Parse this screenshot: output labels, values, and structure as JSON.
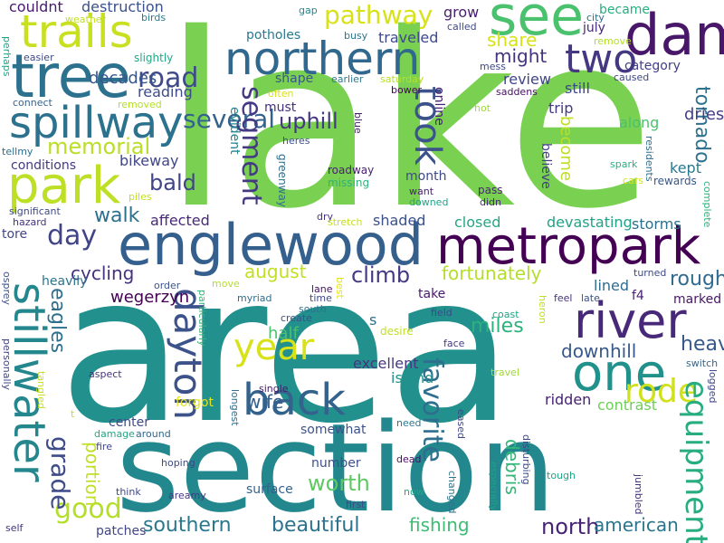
{
  "words": [
    {
      "text": "lake",
      "color": "#7ad151"
    },
    {
      "text": "area",
      "color": "#22908d"
    },
    {
      "text": "section",
      "color": "#23888e"
    },
    {
      "text": "metropark",
      "color": "#440154"
    },
    {
      "text": "englewood",
      "color": "#355f8d"
    },
    {
      "text": "tree",
      "color": "#2c718e"
    },
    {
      "text": "northern",
      "color": "#31688e"
    },
    {
      "text": "dam",
      "color": "#481769"
    },
    {
      "text": "see",
      "color": "#4ac16d"
    },
    {
      "text": "spillway",
      "color": "#2c728e"
    },
    {
      "text": "park",
      "color": "#bddf26"
    },
    {
      "text": "trails",
      "color": "#c8e020"
    },
    {
      "text": "river",
      "color": "#482979"
    },
    {
      "text": "one",
      "color": "#21918c"
    },
    {
      "text": "stillwater",
      "color": "#24878e"
    },
    {
      "text": "dayton",
      "color": "#3b528b"
    },
    {
      "text": "back",
      "color": "#33638d"
    },
    {
      "text": "year",
      "color": "#d8e219"
    },
    {
      "text": "rode",
      "color": "#d0e11c"
    },
    {
      "text": "equipment",
      "color": "#27ad81"
    },
    {
      "text": "two",
      "color": "#453781"
    },
    {
      "text": "took",
      "color": "#3b528b"
    },
    {
      "text": "pathway",
      "color": "#d8e219"
    },
    {
      "text": "several",
      "color": "#33638d"
    },
    {
      "text": "road",
      "color": "#3e4a89"
    },
    {
      "text": "segment",
      "color": "#443a83"
    },
    {
      "text": "memorial",
      "color": "#bade28"
    },
    {
      "text": "day",
      "color": "#414487"
    },
    {
      "text": "good",
      "color": "#b5de2b"
    },
    {
      "text": "grade",
      "color": "#3e4c8a"
    },
    {
      "text": "favorite",
      "color": "#2e6e8e"
    },
    {
      "text": "southern",
      "color": "#2a788e"
    },
    {
      "text": "beautiful",
      "color": "#2c728e"
    },
    {
      "text": "north",
      "color": "#482475"
    },
    {
      "text": "american",
      "color": "#2a768e"
    },
    {
      "text": "fishing",
      "color": "#3dbc74"
    },
    {
      "text": "worth",
      "color": "#5ec962"
    },
    {
      "text": "miles",
      "color": "#2db27d"
    },
    {
      "text": "rough",
      "color": "#306a8e"
    },
    {
      "text": "heavy",
      "color": "#38588c"
    },
    {
      "text": "downhill",
      "color": "#38588c"
    },
    {
      "text": "tornado",
      "color": "#2c728e"
    },
    {
      "text": "climb",
      "color": "#443983"
    },
    {
      "text": "august",
      "color": "#c2df23"
    },
    {
      "text": "fortunately",
      "color": "#b5de2b"
    },
    {
      "text": "cycling",
      "color": "#46327e"
    },
    {
      "text": "walk",
      "color": "#2d708e"
    },
    {
      "text": "bald",
      "color": "#414487"
    },
    {
      "text": "uphill",
      "color": "#453882"
    },
    {
      "text": "eagles",
      "color": "#2e6f8e"
    },
    {
      "text": "portion",
      "color": "#c0df25"
    },
    {
      "text": "wife",
      "color": "#355f8d"
    },
    {
      "text": "debris",
      "color": "#35b779"
    },
    {
      "text": "share",
      "color": "#d8e219"
    },
    {
      "text": "might",
      "color": "#46337e"
    },
    {
      "text": "dries",
      "color": "#433e85"
    },
    {
      "text": "become",
      "color": "#bddf26"
    },
    {
      "text": "kept",
      "color": "#2a788e"
    },
    {
      "text": "along",
      "color": "#4ac16d"
    },
    {
      "text": "lined",
      "color": "#2f6c8e"
    },
    {
      "text": "wegerzyn",
      "color": "#440154"
    },
    {
      "text": "half",
      "color": "#4ac16d"
    },
    {
      "text": "island",
      "color": "#21918c"
    },
    {
      "text": "excellent",
      "color": "#453781"
    },
    {
      "text": "ridden",
      "color": "#482173"
    },
    {
      "text": "contrast",
      "color": "#6ece58"
    },
    {
      "text": "storms",
      "color": "#2e6e8e"
    },
    {
      "text": "devastating",
      "color": "#20a386"
    },
    {
      "text": "closed",
      "color": "#22a785"
    },
    {
      "text": "shaded",
      "color": "#3b518b"
    },
    {
      "text": "affected",
      "color": "#482878"
    },
    {
      "text": "bikeway",
      "color": "#404688"
    },
    {
      "text": "conditions",
      "color": "#453882"
    },
    {
      "text": "decades",
      "color": "#38588c"
    },
    {
      "text": "reading",
      "color": "#3e4a89"
    },
    {
      "text": "couldnt",
      "color": "#481a6c"
    },
    {
      "text": "destruction",
      "color": "#3b528b"
    },
    {
      "text": "traveled",
      "color": "#3e4a89"
    },
    {
      "text": "grow",
      "color": "#481f70"
    },
    {
      "text": "trip",
      "color": "#443983"
    },
    {
      "text": "review",
      "color": "#404588"
    },
    {
      "text": "still",
      "color": "#3f4889"
    },
    {
      "text": "category",
      "color": "#424086"
    },
    {
      "text": "july",
      "color": "#482878"
    },
    {
      "text": "became",
      "color": "#26ad81"
    },
    {
      "text": "potholes",
      "color": "#2a788e"
    },
    {
      "text": "shape",
      "color": "#3a548c"
    },
    {
      "text": "must",
      "color": "#46307e"
    },
    {
      "text": "evident",
      "color": "#25848e"
    },
    {
      "text": "believe",
      "color": "#424086"
    },
    {
      "text": "center",
      "color": "#3e4989"
    },
    {
      "text": "forgot",
      "color": "#e5e419"
    },
    {
      "text": "somewhat",
      "color": "#3b528b"
    },
    {
      "text": "number",
      "color": "#3b528b"
    },
    {
      "text": "surface",
      "color": "#33638d"
    },
    {
      "text": "patches",
      "color": "#404688"
    },
    {
      "text": "heavily",
      "color": "#2c738e"
    },
    {
      "text": "tore",
      "color": "#3f4889"
    },
    {
      "text": "take",
      "color": "#48186a"
    },
    {
      "text": "month",
      "color": "#3e4989"
    },
    {
      "text": "online",
      "color": "#482173"
    },
    {
      "text": "saddens",
      "color": "#471063"
    },
    {
      "text": "caused",
      "color": "#3f4788"
    },
    {
      "text": "marked",
      "color": "#481467"
    },
    {
      "text": "f4",
      "color": "#482071"
    },
    {
      "text": "s",
      "color": "#2d708e"
    },
    {
      "text": "roadway",
      "color": "#482071"
    },
    {
      "text": "missing",
      "color": "#2db27d"
    },
    {
      "text": "spark",
      "color": "#2ab07f"
    },
    {
      "text": "cars",
      "color": "#d5e21a"
    },
    {
      "text": "rewards",
      "color": "#38588c"
    },
    {
      "text": "residents",
      "color": "#2e6e8e"
    },
    {
      "text": "complete",
      "color": "#2db27d"
    },
    {
      "text": "pass",
      "color": "#482576"
    },
    {
      "text": "didn",
      "color": "#482878"
    },
    {
      "text": "want",
      "color": "#481d6f"
    },
    {
      "text": "downed",
      "color": "#20a486"
    },
    {
      "text": "dry",
      "color": "#46307e"
    },
    {
      "text": "greenway",
      "color": "#2e6e8e"
    },
    {
      "text": "heres",
      "color": "#3b518b"
    },
    {
      "text": "stretch",
      "color": "#c8e020"
    },
    {
      "text": "blue",
      "color": "#481d6f"
    },
    {
      "text": "hot",
      "color": "#a0da39"
    },
    {
      "text": "mess",
      "color": "#3e4989"
    },
    {
      "text": "saturday",
      "color": "#b8de29"
    },
    {
      "text": "bower",
      "color": "#440154"
    },
    {
      "text": "earlier",
      "color": "#2a788e"
    },
    {
      "text": "often",
      "color": "#d8e219"
    },
    {
      "text": "busy",
      "color": "#2b748e"
    },
    {
      "text": "called",
      "color": "#3e4a89"
    },
    {
      "text": "gap",
      "color": "#24868e"
    },
    {
      "text": "birds",
      "color": "#287c8e"
    },
    {
      "text": "city",
      "color": "#2f6b8e"
    },
    {
      "text": "remove",
      "color": "#b5de2b"
    },
    {
      "text": "slightly",
      "color": "#22a785"
    },
    {
      "text": "easier",
      "color": "#3e4a89"
    },
    {
      "text": "perhaps",
      "color": "#20a486"
    },
    {
      "text": "weather",
      "color": "#c2df23"
    },
    {
      "text": "connect",
      "color": "#33638d"
    },
    {
      "text": "removed",
      "color": "#b5de2b"
    },
    {
      "text": "tellmy",
      "color": "#2e6e8e"
    },
    {
      "text": "piles",
      "color": "#c0df25"
    },
    {
      "text": "significant",
      "color": "#3e4a89"
    },
    {
      "text": "hazard",
      "color": "#46337e"
    },
    {
      "text": "osprey",
      "color": "#3b528b"
    },
    {
      "text": "order",
      "color": "#3a548c"
    },
    {
      "text": "move",
      "color": "#b5de2b"
    },
    {
      "text": "particularly",
      "color": "#35b779"
    },
    {
      "text": "myriad",
      "color": "#2d708e"
    },
    {
      "text": "lane",
      "color": "#471365"
    },
    {
      "text": "time",
      "color": "#3e4a89"
    },
    {
      "text": "south",
      "color": "#2c728e"
    },
    {
      "text": "create",
      "color": "#3b528b"
    },
    {
      "text": "best",
      "color": "#e5e419"
    },
    {
      "text": "desire",
      "color": "#c0df25"
    },
    {
      "text": "field",
      "color": "#3f4889"
    },
    {
      "text": "coast",
      "color": "#20a386"
    },
    {
      "text": "face",
      "color": "#443983"
    },
    {
      "text": "heron",
      "color": "#bddf26"
    },
    {
      "text": "feel",
      "color": "#46337e"
    },
    {
      "text": "late",
      "color": "#3b528b"
    },
    {
      "text": "turned",
      "color": "#3e4a89"
    },
    {
      "text": "switch",
      "color": "#31688e"
    },
    {
      "text": "logged",
      "color": "#404688"
    },
    {
      "text": "travel",
      "color": "#a0da39"
    },
    {
      "text": "personally",
      "color": "#414487"
    },
    {
      "text": "tangled",
      "color": "#c8e020"
    },
    {
      "text": "aspect",
      "color": "#46337e"
    },
    {
      "text": "single",
      "color": "#481a6c"
    },
    {
      "text": "longest",
      "color": "#2e6e8e"
    },
    {
      "text": "t",
      "color": "#c8e020"
    },
    {
      "text": "need",
      "color": "#2a788e"
    },
    {
      "text": "eased",
      "color": "#3e4989"
    },
    {
      "text": "especially",
      "color": "#1fa088"
    },
    {
      "text": "damage",
      "color": "#22a785"
    },
    {
      "text": "around",
      "color": "#31688e"
    },
    {
      "text": "fire",
      "color": "#414487"
    },
    {
      "text": "hoping",
      "color": "#3e4989"
    },
    {
      "text": "think",
      "color": "#3f4889"
    },
    {
      "text": "areamy",
      "color": "#443983"
    },
    {
      "text": "dead",
      "color": "#471063"
    },
    {
      "text": "changed",
      "color": "#2c738e"
    },
    {
      "text": "disturbing",
      "color": "#3e4a89"
    },
    {
      "text": "tough",
      "color": "#20a486"
    },
    {
      "text": "jumbled",
      "color": "#46337e"
    },
    {
      "text": "first",
      "color": "#3f4889"
    },
    {
      "text": "now",
      "color": "#22a785"
    },
    {
      "text": "self",
      "color": "#453781"
    }
  ]
}
